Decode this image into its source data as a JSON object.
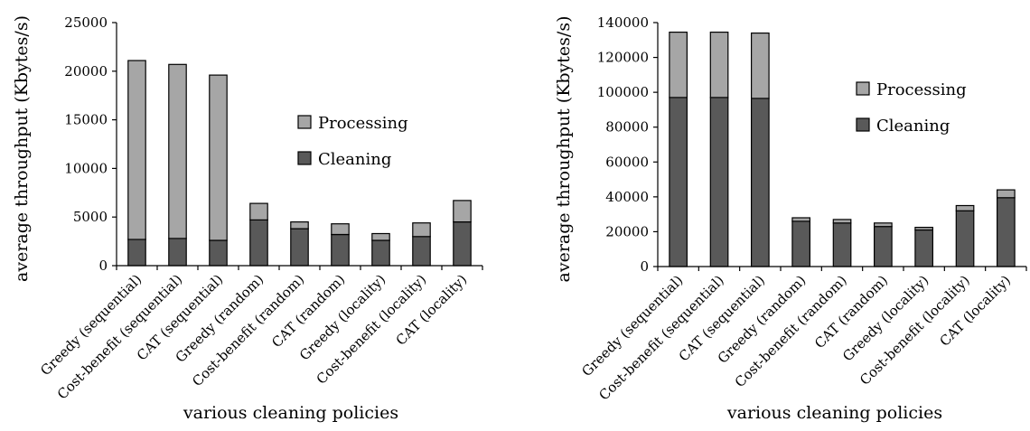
{
  "colors": {
    "processing": "#a6a6a6",
    "cleaning": "#595959",
    "axis": "#000000",
    "background": "#ffffff"
  },
  "chart_data": [
    {
      "type": "bar",
      "stacked": true,
      "title": "",
      "xlabel": "various cleaning policies",
      "ylabel": "average throughput (Kbytes/s)",
      "ylim": [
        0,
        25000
      ],
      "yticks": [
        0,
        5000,
        10000,
        15000,
        20000,
        25000
      ],
      "grid": false,
      "legend_position": "center-right",
      "legend": [
        "Processing",
        "Cleaning"
      ],
      "categories": [
        "Greedy (sequential)",
        "Cost-benefit (sequential)",
        "CAT (sequential)",
        "Greedy (random)",
        "Cost-benefit (random)",
        "CAT (random)",
        "Greedy (locality)",
        "Cost-benefit (locality)",
        "CAT (locality)"
      ],
      "series": [
        {
          "name": "Cleaning",
          "values": [
            2700,
            2800,
            2600,
            4700,
            3800,
            3200,
            2600,
            3000,
            4500
          ]
        },
        {
          "name": "Processing",
          "values": [
            18400,
            17900,
            17000,
            1700,
            700,
            1100,
            700,
            1400,
            2200
          ]
        }
      ]
    },
    {
      "type": "bar",
      "stacked": true,
      "title": "",
      "xlabel": "various cleaning policies",
      "ylabel": "average throughput (Kbytes/s)",
      "ylim": [
        0,
        140000
      ],
      "yticks": [
        0,
        20000,
        40000,
        60000,
        80000,
        100000,
        120000,
        140000
      ],
      "grid": false,
      "legend_position": "center-right",
      "legend": [
        "Processing",
        "Cleaning"
      ],
      "categories": [
        "Greedy (sequential)",
        "Cost-benefit (sequential)",
        "CAT (sequential)",
        "Greedy (random)",
        "Cost-benefit (random)",
        "CAT (random)",
        "Greedy (locality)",
        "Cost-benefit (locality)",
        "CAT (locality)"
      ],
      "series": [
        {
          "name": "Cleaning",
          "values": [
            97000,
            97000,
            96500,
            26000,
            25000,
            23000,
            21000,
            32000,
            39500
          ]
        },
        {
          "name": "Processing",
          "values": [
            37500,
            37500,
            37500,
            2000,
            2000,
            2000,
            1500,
            3000,
            4500
          ]
        }
      ]
    }
  ]
}
